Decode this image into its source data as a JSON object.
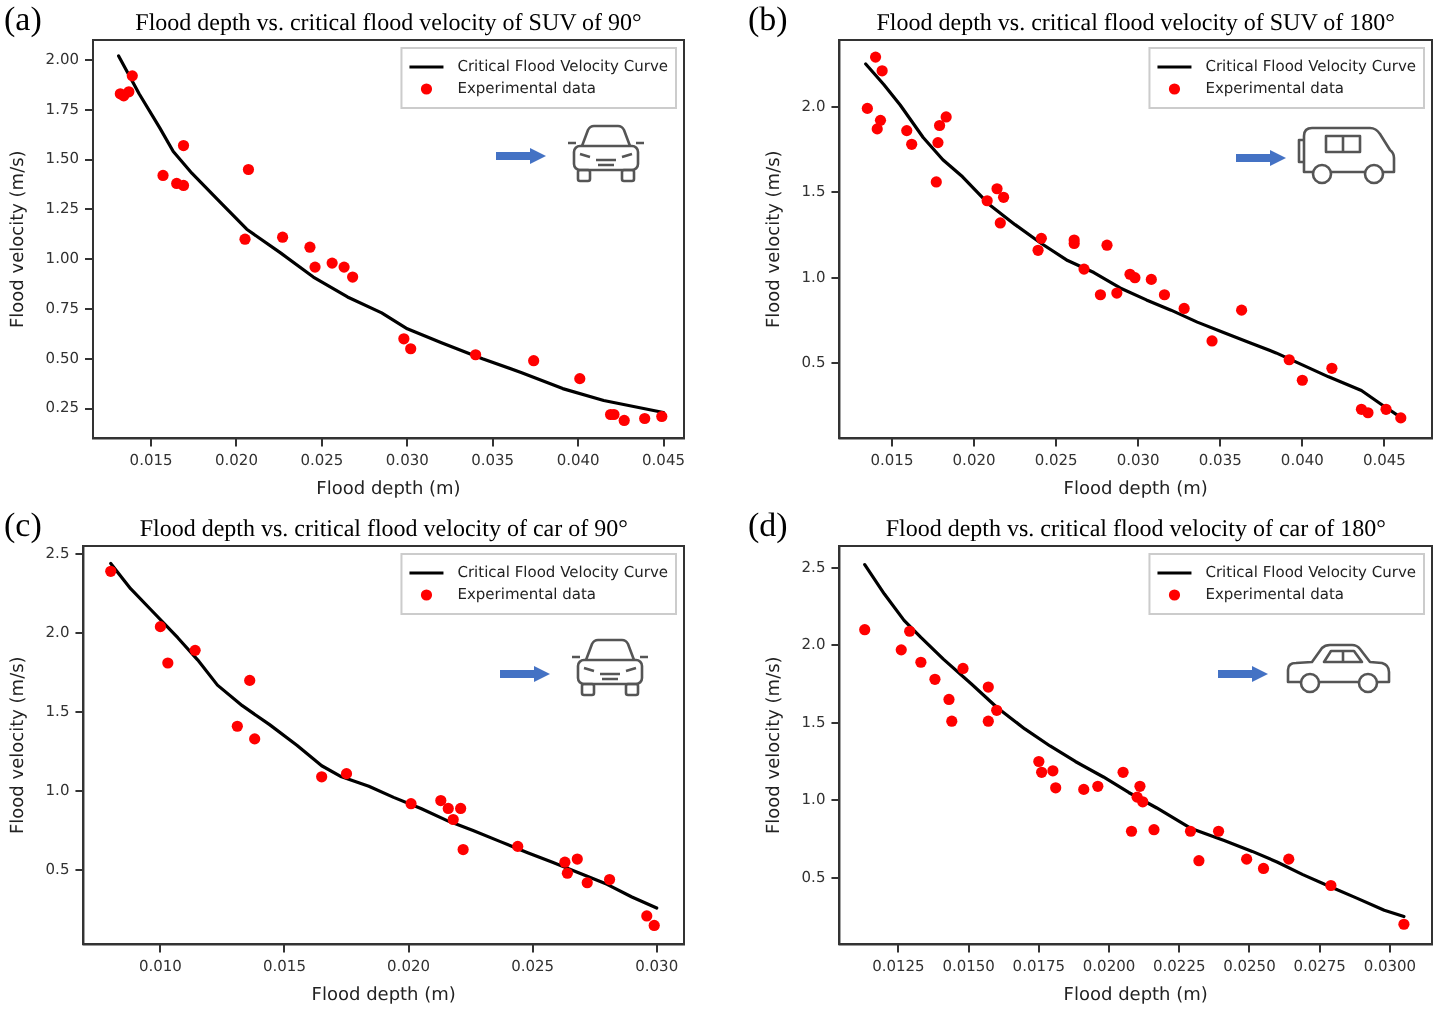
{
  "chart_data": [
    {
      "type": "scatter",
      "title": "Flood depth vs. critical flood velocity of SUV of 90°",
      "xlabel": "Flood depth (m)",
      "ylabel": "Flood velocity (m/s)",
      "annotations": [
        "(a)"
      ],
      "xlim": [
        0.0116,
        0.0462
      ],
      "ylim": [
        0.1,
        2.1
      ],
      "xticks": [
        0.015,
        {
          "value": 0.02,
          "label": "0.020"
        },
        0.025,
        {
          "value": 0.03,
          "label": "0.030"
        },
        0.035,
        {
          "value": 0.04,
          "label": "0.040"
        },
        0.045
      ],
      "yticks": [
        0.25,
        {
          "value": 0.5,
          "label": "0.50"
        },
        0.75,
        {
          "value": 1,
          "label": "1.00"
        },
        1.25,
        {
          "value": 1.5,
          "label": "1.50"
        },
        1.75,
        {
          "value": 2,
          "label": "2.00"
        }
      ],
      "legend": "top right",
      "marker": "circle",
      "series": [
        {
          "name": "Critical Flood Velocity Curve",
          "type": "line",
          "marker": "none",
          "color": "#000000",
          "x": [
            0.0131,
            0.0143,
            0.0155,
            0.0163,
            0.0174,
            0.019,
            0.0206,
            0.0226,
            0.0245,
            0.0265,
            0.0285,
            0.03,
            0.032,
            0.0344,
            0.0367,
            0.0391,
            0.0415,
            0.045
          ],
          "values": [
            2.02,
            1.83,
            1.66,
            1.54,
            1.43,
            1.29,
            1.15,
            1.03,
            0.91,
            0.81,
            0.73,
            0.65,
            0.58,
            0.5,
            0.43,
            0.35,
            0.29,
            0.23
          ]
        },
        {
          "name": "Experimental data",
          "color": "#ff0000",
          "x": [
            0.0132,
            0.0134,
            0.0137,
            0.0139,
            0.0169,
            0.0157,
            0.0165,
            0.0169,
            0.0207,
            0.0205,
            0.0227,
            0.0243,
            0.0246,
            0.0256,
            0.0263,
            0.0268,
            0.0298,
            0.0302,
            0.034,
            0.0374,
            0.0401,
            0.0419,
            0.0421,
            0.0427,
            0.0439,
            0.0449
          ],
          "values": [
            1.83,
            1.82,
            1.84,
            1.92,
            1.57,
            1.42,
            1.38,
            1.37,
            1.45,
            1.1,
            1.11,
            1.06,
            0.96,
            0.98,
            0.96,
            0.91,
            0.6,
            0.55,
            0.52,
            0.49,
            0.4,
            0.22,
            0.22,
            0.19,
            0.2,
            0.21
          ]
        }
      ]
    },
    {
      "type": "scatter",
      "title": "Flood depth vs. critical flood velocity of SUV of 180°",
      "xlabel": "Flood depth (m)",
      "ylabel": "Flood velocity (m/s)",
      "annotations": [
        "(b)"
      ],
      "xlim": [
        0.0118,
        0.0479
      ],
      "ylim": [
        0.06,
        2.39
      ],
      "xticks": [
        0.015,
        {
          "value": 0.02,
          "label": "0.020"
        },
        0.025,
        {
          "value": 0.03,
          "label": "0.030"
        },
        0.035,
        {
          "value": 0.04,
          "label": "0.040"
        },
        0.045
      ],
      "yticks": [
        0.5,
        {
          "value": 1,
          "label": "1.0"
        },
        1.5,
        {
          "value": 2,
          "label": "2.0"
        }
      ],
      "legend": "top right",
      "marker": "circle",
      "series": [
        {
          "name": "Critical Flood Velocity Curve",
          "type": "line",
          "marker": "none",
          "color": "#000000",
          "x": [
            0.0134,
            0.0145,
            0.0155,
            0.0169,
            0.0181,
            0.0193,
            0.0209,
            0.0225,
            0.0241,
            0.0257,
            0.0273,
            0.0289,
            0.0305,
            0.032,
            0.0336,
            0.0352,
            0.0368,
            0.0384,
            0.04,
            0.0416,
            0.0436,
            0.0448,
            0.0462
          ],
          "values": [
            2.25,
            2.13,
            2.01,
            1.82,
            1.69,
            1.59,
            1.43,
            1.31,
            1.2,
            1.1,
            1.03,
            0.94,
            0.87,
            0.81,
            0.74,
            0.68,
            0.62,
            0.56,
            0.49,
            0.42,
            0.34,
            0.26,
            0.17
          ]
        },
        {
          "name": "Experimental data",
          "color": "#ff0000",
          "x": [
            0.0135,
            0.014,
            0.0144,
            0.0143,
            0.0141,
            0.0159,
            0.0162,
            0.0179,
            0.0183,
            0.0178,
            0.0177,
            0.0208,
            0.0214,
            0.0218,
            0.0216,
            0.0239,
            0.0241,
            0.0261,
            0.0261,
            0.0267,
            0.0277,
            0.0281,
            0.0287,
            0.0295,
            0.0298,
            0.0308,
            0.0316,
            0.0328,
            0.0345,
            0.0363,
            0.0392,
            0.04,
            0.0418,
            0.0436,
            0.044,
            0.0451,
            0.046
          ],
          "values": [
            1.99,
            2.29,
            2.21,
            1.92,
            1.87,
            1.86,
            1.78,
            1.89,
            1.94,
            1.79,
            1.56,
            1.45,
            1.52,
            1.47,
            1.32,
            1.16,
            1.23,
            1.22,
            1.2,
            1.05,
            0.9,
            1.19,
            0.91,
            1.02,
            1.0,
            0.99,
            0.9,
            0.82,
            0.63,
            0.81,
            0.52,
            0.4,
            0.47,
            0.23,
            0.21,
            0.23,
            0.18
          ]
        }
      ]
    },
    {
      "type": "scatter",
      "title": "Flood depth vs. critical flood velocity of car of 90°",
      "xlabel": "Flood depth (m)",
      "ylabel": "Flood velocity (m/s)",
      "annotations": [
        "(c)"
      ],
      "xlim": [
        0.0069,
        0.0311
      ],
      "ylim": [
        0.03,
        2.55
      ],
      "xticks": [
        {
          "value": 0.01,
          "label": "0.010"
        },
        0.015,
        {
          "value": 0.02,
          "label": "0.020"
        },
        0.025,
        {
          "value": 0.03,
          "label": "0.030"
        }
      ],
      "yticks": [
        0.5,
        {
          "value": 1,
          "label": "1.0"
        },
        1.5,
        {
          "value": 2,
          "label": "2.0"
        },
        2.5
      ],
      "legend": "top right",
      "marker": "circle",
      "series": [
        {
          "name": "Critical Flood Velocity Curve",
          "type": "line",
          "marker": "none",
          "color": "#000000",
          "x": [
            0.008,
            0.0088,
            0.0096,
            0.0107,
            0.0115,
            0.0123,
            0.0133,
            0.0144,
            0.0155,
            0.0165,
            0.0173,
            0.0184,
            0.0194,
            0.0205,
            0.0216,
            0.0226,
            0.0237,
            0.0248,
            0.0258,
            0.0269,
            0.028,
            0.029,
            0.03
          ],
          "values": [
            2.44,
            2.28,
            2.15,
            1.97,
            1.83,
            1.67,
            1.54,
            1.42,
            1.29,
            1.16,
            1.09,
            1.03,
            0.96,
            0.89,
            0.81,
            0.75,
            0.68,
            0.61,
            0.55,
            0.48,
            0.41,
            0.33,
            0.26
          ]
        },
        {
          "name": "Experimental data",
          "color": "#ff0000",
          "x": [
            0.008,
            0.01,
            0.0103,
            0.0114,
            0.0136,
            0.0131,
            0.0138,
            0.0165,
            0.0175,
            0.0201,
            0.0213,
            0.0216,
            0.0218,
            0.0221,
            0.0222,
            0.0244,
            0.0263,
            0.0264,
            0.0268,
            0.0272,
            0.0281,
            0.0296,
            0.0299
          ],
          "values": [
            2.39,
            2.04,
            1.81,
            1.89,
            1.7,
            1.41,
            1.33,
            1.09,
            1.11,
            0.92,
            0.94,
            0.89,
            0.82,
            0.89,
            0.63,
            0.65,
            0.55,
            0.48,
            0.57,
            0.42,
            0.44,
            0.21,
            0.15
          ]
        }
      ]
    },
    {
      "type": "scatter",
      "title": "Flood depth vs. critical flood velocity of car of 180°",
      "xlabel": "Flood depth (m)",
      "ylabel": "Flood velocity (m/s)",
      "annotations": [
        "(d)"
      ],
      "xlim": [
        0.0104,
        0.0315
      ],
      "ylim": [
        0.07,
        2.64
      ],
      "xticks": [
        0.0125,
        {
          "value": 0.015,
          "label": "0.0150"
        },
        0.0175,
        {
          "value": 0.02,
          "label": "0.0200"
        },
        0.0225,
        {
          "value": 0.025,
          "label": "0.0250"
        },
        0.0275,
        {
          "value": 0.03,
          "label": "0.0300"
        }
      ],
      "yticks": [
        0.5,
        {
          "value": 1,
          "label": "1.0"
        },
        1.5,
        {
          "value": 2,
          "label": "2.0"
        },
        2.5
      ],
      "legend": "top right",
      "marker": "circle",
      "series": [
        {
          "name": "Critical Flood Velocity Curve",
          "type": "line",
          "marker": "none",
          "color": "#000000",
          "x": [
            0.0113,
            0.012,
            0.0127,
            0.0133,
            0.0141,
            0.0151,
            0.016,
            0.017,
            0.0179,
            0.0188,
            0.0198,
            0.0207,
            0.0217,
            0.0229,
            0.0241,
            0.0251,
            0.026,
            0.0269,
            0.0279,
            0.0288,
            0.0298,
            0.0305
          ],
          "values": [
            2.52,
            2.33,
            2.16,
            2.05,
            1.91,
            1.75,
            1.6,
            1.46,
            1.35,
            1.25,
            1.15,
            1.05,
            0.95,
            0.82,
            0.74,
            0.67,
            0.6,
            0.52,
            0.44,
            0.37,
            0.29,
            0.25
          ]
        },
        {
          "name": "Experimental data",
          "color": "#ff0000",
          "x": [
            0.0113,
            0.0126,
            0.0129,
            0.0133,
            0.0138,
            0.0143,
            0.0144,
            0.0148,
            0.0157,
            0.0157,
            0.016,
            0.0175,
            0.0176,
            0.018,
            0.0181,
            0.0191,
            0.0196,
            0.0205,
            0.0211,
            0.021,
            0.0212,
            0.0208,
            0.0216,
            0.0229,
            0.0232,
            0.0239,
            0.0249,
            0.0255,
            0.0264,
            0.0279,
            0.0305
          ],
          "values": [
            2.1,
            1.97,
            2.09,
            1.89,
            1.78,
            1.65,
            1.51,
            1.85,
            1.73,
            1.51,
            1.58,
            1.25,
            1.18,
            1.19,
            1.08,
            1.07,
            1.09,
            1.18,
            1.09,
            1.02,
            0.99,
            0.8,
            0.81,
            0.8,
            0.61,
            0.8,
            0.62,
            0.56,
            0.62,
            0.45,
            0.2
          ]
        }
      ]
    }
  ]
}
